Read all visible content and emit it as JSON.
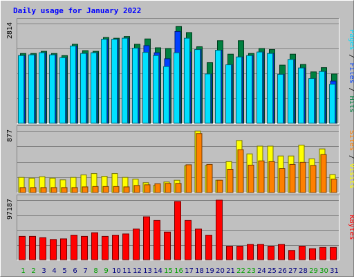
{
  "chart_data": [
    {
      "type": "bar",
      "title": "Daily usage for January 2022",
      "panel": "hits_files_pages",
      "ylabel_parts": [
        "Pages",
        "Files",
        "Hits"
      ],
      "separator": " / ",
      "ymax_label": "2814",
      "ylim": [
        0,
        2814
      ],
      "categories": [
        "1",
        "2",
        "3",
        "4",
        "5",
        "6",
        "7",
        "8",
        "9",
        "10",
        "11",
        "12",
        "13",
        "14",
        "15",
        "16",
        "17",
        "18",
        "19",
        "20",
        "21",
        "22",
        "23",
        "24",
        "25",
        "26",
        "27",
        "28",
        "29",
        "30",
        "31"
      ],
      "weekend_days": [
        "1",
        "2",
        "8",
        "9",
        "15",
        "16",
        "22",
        "23",
        "29",
        "30"
      ],
      "series": [
        {
          "name": "Hits",
          "color": "#008040",
          "values": [
            1969,
            1969,
            2030,
            1969,
            1910,
            2230,
            2050,
            2030,
            2420,
            2400,
            2450,
            2230,
            2380,
            2130,
            2110,
            2730,
            2560,
            2160,
            1710,
            2330,
            1950,
            2330,
            1970,
            2110,
            2080,
            1640,
            1950,
            1660,
            1450,
            1570,
            1390
          ]
        },
        {
          "name": "Files",
          "color": "#0040ff",
          "values": [
            1910,
            1930,
            1990,
            1930,
            1850,
            2180,
            1970,
            1990,
            2370,
            2370,
            2400,
            2120,
            2190,
            1990,
            1820,
            2590,
            2010,
            2080,
            1390,
            2060,
            1650,
            1870,
            1910,
            2010,
            1970,
            1380,
            1800,
            1560,
            1260,
            1460,
            1190
          ]
        },
        {
          "name": "Pages",
          "color": "#00e0ff",
          "values": [
            1910,
            1930,
            1990,
            1930,
            1850,
            2180,
            1970,
            1990,
            2370,
            2370,
            2400,
            2120,
            2000,
            1910,
            1600,
            1990,
            2400,
            2080,
            1390,
            2060,
            1650,
            1870,
            1910,
            2010,
            1970,
            1380,
            1800,
            1560,
            1260,
            1460,
            1100
          ]
        }
      ]
    },
    {
      "type": "bar",
      "panel": "visits_sites",
      "ylabel_parts": [
        "Sites",
        "Visits"
      ],
      "separator": " / ",
      "ymax_label": "877",
      "ylim": [
        0,
        877
      ],
      "series": [
        {
          "name": "Visits",
          "color": "#ffff00",
          "values": [
            215,
            205,
            225,
            205,
            180,
            215,
            250,
            270,
            230,
            270,
            215,
            190,
            140,
            100,
            150,
            175,
            380,
            875,
            385,
            175,
            440,
            740,
            550,
            660,
            660,
            520,
            520,
            675,
            480,
            620,
            255
          ]
        },
        {
          "name": "Sites",
          "color": "#ff8000",
          "values": [
            70,
            70,
            70,
            70,
            70,
            70,
            80,
            85,
            85,
            85,
            80,
            100,
            110,
            125,
            130,
            130,
            395,
            840,
            400,
            175,
            330,
            610,
            390,
            450,
            440,
            340,
            400,
            430,
            385,
            540,
            190
          ]
        }
      ]
    },
    {
      "type": "bar",
      "panel": "kbytes",
      "ylabel_parts": [
        "KBytes"
      ],
      "separator": "",
      "ymax_label": "97187",
      "ylim": [
        0,
        97187
      ],
      "series": [
        {
          "name": "KBytes",
          "color": "#ff0000",
          "values": [
            38000,
            38000,
            36000,
            33000,
            34000,
            40000,
            38000,
            44000,
            38000,
            40000,
            42000,
            50000,
            70000,
            64000,
            45000,
            95000,
            64000,
            50000,
            40000,
            97187,
            22000,
            22000,
            25000,
            25000,
            22000,
            25000,
            15000,
            22000,
            18000,
            20000,
            20000
          ]
        }
      ]
    }
  ],
  "colors": {
    "background": "#c0c0c0",
    "frame_light": "#ffffff",
    "frame_dark": "#808080",
    "title_text": "#0000ff",
    "ymax_text": "#000000",
    "grid": "#808080",
    "weekday_label": "#000080",
    "weekend_label": "#00a000",
    "separator": "#000000"
  }
}
